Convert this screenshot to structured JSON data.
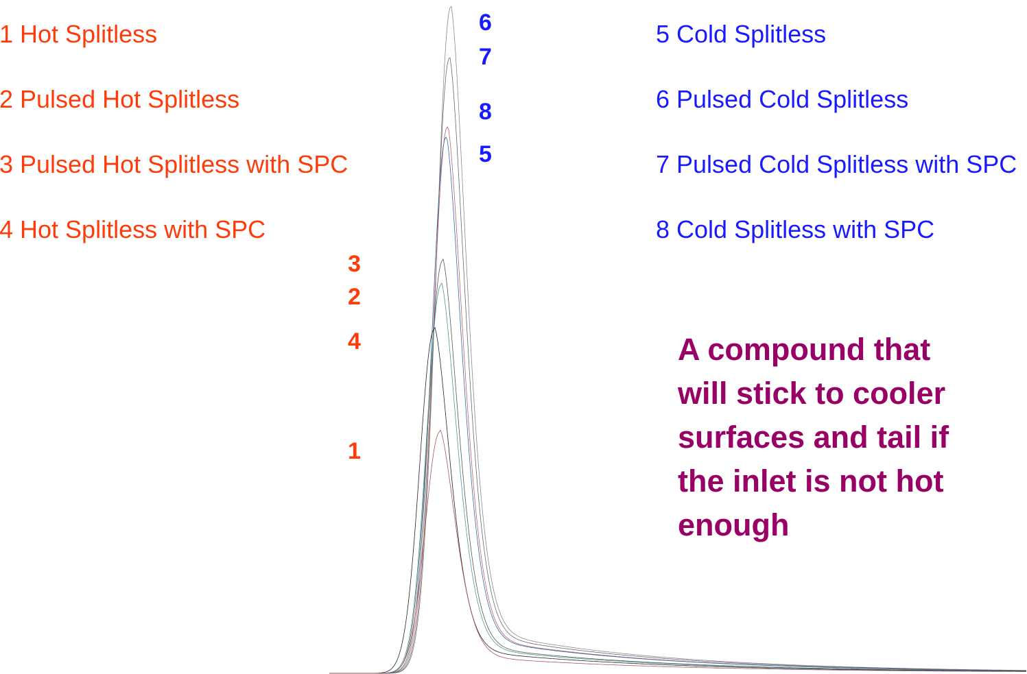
{
  "hot_legend": [
    "1 Hot Splitless",
    "2 Pulsed Hot Splitless",
    "3 Pulsed Hot Splitless with SPC",
    "4 Hot Splitless with SPC"
  ],
  "cold_legend": [
    "5 Cold Splitless",
    "6 Pulsed Cold Splitless",
    "7 Pulsed Cold Splitless with SPC",
    "8 Cold Splitless with SPC"
  ],
  "cold_peak_labels": [
    "6",
    "7",
    "8",
    "5"
  ],
  "hot_peak_labels": [
    "3",
    "2",
    "4",
    "1"
  ],
  "note_lines": [
    "A compound that",
    "will stick to cooler",
    "surfaces and tail if",
    "the inlet is not hot",
    "enough"
  ]
}
